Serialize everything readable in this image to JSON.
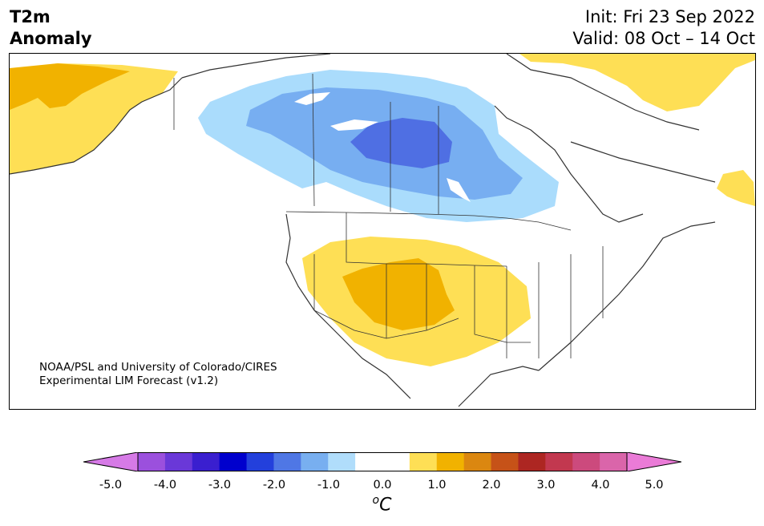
{
  "header": {
    "title_line1": "T2m",
    "title_line2": "Anomaly",
    "init": "Init: Fri 23 Sep 2022",
    "valid": "Valid: 08 Oct – 14 Oct"
  },
  "credit": {
    "line1": "NOAA/PSL and University of Colorado/CIRES",
    "line2": "Experimental LIM Forecast (v1.2)"
  },
  "colorbar": {
    "ticks": [
      "-5.0",
      "-4.0",
      "-3.0",
      "-2.0",
      "-1.0",
      "0.0",
      "1.0",
      "2.0",
      "3.0",
      "4.0",
      "5.0"
    ],
    "unit_sup": "o",
    "unit_main": "C",
    "colors": [
      "#d67ae6",
      "#9b50dd",
      "#6a38d8",
      "#3a1fcf",
      "#0000cd",
      "#2340dc",
      "#4f77e5",
      "#78aff0",
      "#b0ddfb",
      "#ffffff",
      "#ffffff",
      "#fedf55",
      "#f1b200",
      "#db8710",
      "#c65218",
      "#ad2622",
      "#c2384f",
      "#cc4a7d",
      "#da65aa",
      "#ea7bd7"
    ]
  },
  "map": {
    "anomaly_colors": {
      "cold_1": "#aadcfc",
      "cold_2": "#77aef1",
      "cold_3": "#4f6fe3",
      "warm_1": "#fedf55",
      "warm_2": "#f1b200",
      "land_outline": "#333333"
    }
  }
}
